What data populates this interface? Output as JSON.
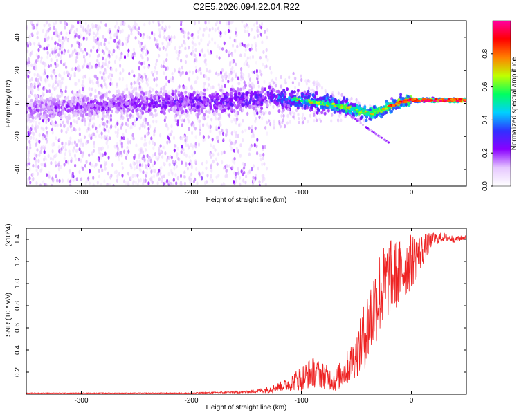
{
  "title": "C2E5.2026.094.22.04.R22",
  "chart_data": [
    {
      "type": "heatmap",
      "title": "C2E5.2026.094.22.04.R22",
      "xlabel": "Height of straight line (km)",
      "ylabel": "Frequency (Hz)",
      "xlim": [
        -350,
        50
      ],
      "ylim": [
        -50,
        50
      ],
      "xticks": [
        -300,
        -200,
        -100,
        0
      ],
      "yticks": [
        -40,
        -20,
        0,
        20,
        40
      ],
      "colorbar": {
        "label": "Normalized spectral amplitude",
        "range": [
          0,
          1
        ],
        "ticks": [
          0.0,
          0.2,
          0.4,
          0.6,
          0.8
        ],
        "tick_labels": [
          "0.0",
          "0.2",
          "0.4",
          "0.6",
          "0.8"
        ],
        "colors": [
          "#ffffff",
          "#e6c8ff",
          "#8a00ff",
          "#3030ff",
          "#00d0ff",
          "#00ff60",
          "#c0ff00",
          "#ff8000",
          "#ff0000",
          "#ff00a0"
        ]
      },
      "trend": {
        "x": [
          -350,
          -300,
          -250,
          -200,
          -150,
          -130,
          -100,
          -70,
          -50,
          -40,
          -30,
          -20,
          -10,
          0,
          20,
          50
        ],
        "y": [
          -3,
          -2,
          0,
          1,
          2,
          4,
          2,
          -1,
          -4,
          -6,
          -5,
          -2,
          1,
          2,
          2,
          2
        ]
      },
      "branch": {
        "x": [
          -60,
          -40,
          -20
        ],
        "y": [
          -5,
          -15,
          -24
        ]
      }
    },
    {
      "type": "line",
      "xlabel": "Height of straight line (km)",
      "ylabel": "SNR (10 * v/v)",
      "scale_label": "(x10^4)",
      "xlim": [
        -350,
        50
      ],
      "ylim": [
        0,
        1.5
      ],
      "xticks": [
        -300,
        -200,
        -100,
        0
      ],
      "yticks": [
        0.2,
        0.4,
        0.6,
        0.8,
        1.0,
        1.2,
        1.4
      ],
      "ytick_labels": [
        "0.2",
        "0.4",
        "0.6",
        "0.8",
        "1.0",
        "1.2",
        "1.4"
      ],
      "series": [
        {
          "name": "SNR",
          "color": "#ee2222",
          "x": [
            -350,
            -300,
            -250,
            -200,
            -150,
            -130,
            -115,
            -100,
            -90,
            -80,
            -70,
            -60,
            -50,
            -40,
            -30,
            -20,
            -10,
            0,
            10,
            20,
            30,
            40,
            50
          ],
          "y": [
            0.01,
            0.01,
            0.01,
            0.01,
            0.02,
            0.04,
            0.08,
            0.15,
            0.2,
            0.17,
            0.12,
            0.22,
            0.35,
            0.6,
            0.9,
            1.05,
            1.1,
            1.2,
            1.3,
            1.4,
            1.42,
            1.4,
            1.42
          ],
          "noise": [
            0.003,
            0.003,
            0.003,
            0.004,
            0.01,
            0.03,
            0.05,
            0.12,
            0.14,
            0.12,
            0.1,
            0.15,
            0.2,
            0.35,
            0.4,
            0.35,
            0.3,
            0.25,
            0.15,
            0.06,
            0.04,
            0.03,
            0.02
          ]
        }
      ]
    }
  ]
}
